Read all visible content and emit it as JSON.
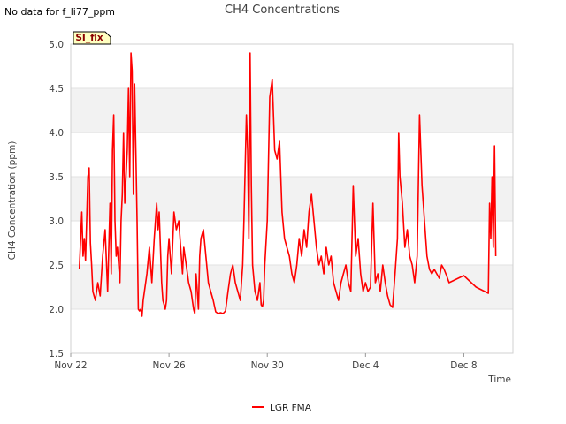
{
  "note": "No data for f_li77_ppm",
  "badge": "SI_flx",
  "chart_data": {
    "type": "line",
    "title": "CH4 Concentrations",
    "xlabel": "Time",
    "ylabel": "CH4 Concentration (ppm)",
    "ylim": [
      1.5,
      5.0
    ],
    "xlim_days": [
      0,
      18
    ],
    "yticks": [
      1.5,
      2.0,
      2.5,
      3.0,
      3.5,
      4.0,
      4.5,
      5.0
    ],
    "ytick_labels": [
      "1.5",
      "2.0",
      "2.5",
      "3.0",
      "3.5",
      "4.0",
      "4.5",
      "5.0"
    ],
    "xticks_days": [
      0,
      4,
      8,
      12,
      16
    ],
    "xtick_labels": [
      "Nov 22",
      "Nov 26",
      "Nov 30",
      "Dec 4",
      "Dec 8"
    ],
    "series": [
      {
        "name": "LGR FMA",
        "color": "#ff0000",
        "x_days": [
          0.35,
          0.45,
          0.5,
          0.55,
          0.6,
          0.7,
          0.75,
          0.8,
          0.85,
          0.9,
          1.0,
          1.1,
          1.2,
          1.3,
          1.4,
          1.5,
          1.6,
          1.65,
          1.7,
          1.75,
          1.8,
          1.85,
          1.9,
          1.95,
          2.0,
          2.05,
          2.1,
          2.15,
          2.2,
          2.3,
          2.35,
          2.4,
          2.45,
          2.5,
          2.55,
          2.6,
          2.65,
          2.7,
          2.75,
          2.8,
          2.85,
          2.9,
          2.95,
          3.0,
          3.1,
          3.2,
          3.3,
          3.4,
          3.5,
          3.55,
          3.6,
          3.65,
          3.7,
          3.75,
          3.8,
          3.85,
          3.9,
          3.95,
          4.0,
          4.1,
          4.2,
          4.3,
          4.4,
          4.5,
          4.55,
          4.6,
          4.7,
          4.8,
          4.9,
          5.0,
          5.05,
          5.1,
          5.15,
          5.2,
          5.25,
          5.3,
          5.4,
          5.5,
          5.6,
          5.7,
          5.8,
          5.9,
          6.0,
          6.1,
          6.2,
          6.3,
          6.4,
          6.5,
          6.6,
          6.7,
          6.8,
          6.9,
          7.0,
          7.05,
          7.1,
          7.15,
          7.2,
          7.25,
          7.3,
          7.35,
          7.4,
          7.5,
          7.6,
          7.7,
          7.75,
          7.8,
          7.85,
          7.9,
          8.0,
          8.1,
          8.2,
          8.3,
          8.4,
          8.5,
          8.6,
          8.7,
          8.8,
          8.9,
          9.0,
          9.1,
          9.2,
          9.3,
          9.4,
          9.5,
          9.6,
          9.7,
          9.8,
          9.9,
          10.0,
          10.1,
          10.2,
          10.3,
          10.4,
          10.5,
          10.6,
          10.7,
          10.8,
          10.9,
          11.0,
          11.1,
          11.2,
          11.3,
          11.4,
          11.5,
          11.6,
          11.7,
          11.8,
          11.9,
          12.0,
          12.1,
          12.2,
          12.3,
          12.4,
          12.5,
          12.6,
          12.7,
          12.8,
          12.9,
          13.0,
          13.1,
          13.2,
          13.3,
          13.35,
          13.4,
          13.5,
          13.6,
          13.7,
          13.8,
          13.9,
          14.0,
          14.1,
          14.2,
          14.3,
          14.4,
          14.5,
          14.6,
          14.7,
          14.8,
          14.9,
          15.0,
          15.1,
          15.2,
          15.3,
          15.4,
          16.0,
          16.5,
          17.0,
          17.05,
          17.1,
          17.15,
          17.2,
          17.25,
          17.3
        ],
        "values": [
          2.45,
          3.1,
          2.6,
          2.8,
          2.55,
          3.5,
          3.6,
          2.75,
          2.5,
          2.2,
          2.1,
          2.3,
          2.15,
          2.6,
          2.9,
          2.2,
          3.2,
          2.4,
          3.8,
          4.2,
          3.0,
          2.6,
          2.7,
          2.5,
          2.3,
          3.0,
          3.3,
          4.0,
          3.2,
          3.8,
          4.5,
          3.5,
          4.9,
          4.7,
          3.3,
          4.55,
          3.8,
          3.0,
          2.0,
          1.98,
          2.0,
          1.92,
          2.1,
          2.2,
          2.4,
          2.7,
          2.3,
          2.8,
          3.2,
          2.9,
          3.1,
          2.7,
          2.3,
          2.1,
          2.05,
          2.0,
          2.1,
          2.6,
          2.8,
          2.4,
          3.1,
          2.9,
          3.0,
          2.6,
          2.4,
          2.7,
          2.5,
          2.3,
          2.2,
          2.0,
          1.95,
          2.4,
          2.2,
          2.0,
          2.6,
          2.8,
          2.9,
          2.6,
          2.3,
          2.2,
          2.1,
          1.97,
          1.95,
          1.96,
          1.95,
          1.98,
          2.2,
          2.4,
          2.5,
          2.3,
          2.2,
          2.1,
          2.5,
          3.0,
          3.6,
          4.2,
          3.8,
          2.8,
          4.9,
          3.4,
          2.5,
          2.2,
          2.1,
          2.3,
          2.05,
          2.03,
          2.1,
          2.5,
          3.0,
          4.4,
          4.6,
          3.8,
          3.7,
          3.9,
          3.1,
          2.8,
          2.7,
          2.6,
          2.4,
          2.3,
          2.5,
          2.8,
          2.6,
          2.9,
          2.7,
          3.1,
          3.3,
          3.0,
          2.7,
          2.5,
          2.6,
          2.4,
          2.7,
          2.5,
          2.6,
          2.3,
          2.2,
          2.1,
          2.3,
          2.4,
          2.5,
          2.3,
          2.2,
          3.4,
          2.6,
          2.8,
          2.4,
          2.2,
          2.3,
          2.2,
          2.25,
          3.2,
          2.3,
          2.4,
          2.2,
          2.5,
          2.3,
          2.15,
          2.05,
          2.02,
          2.4,
          2.8,
          4.0,
          3.5,
          3.2,
          2.7,
          2.9,
          2.6,
          2.5,
          2.3,
          2.6,
          4.2,
          3.4,
          3.0,
          2.6,
          2.45,
          2.4,
          2.45,
          2.4,
          2.35,
          2.5,
          2.45,
          2.38,
          2.3,
          2.38,
          2.25,
          2.18,
          3.2,
          2.8,
          3.5,
          2.7,
          3.85,
          2.6
        ]
      }
    ],
    "legend": {
      "entries": [
        "LGR FMA"
      ],
      "placement": "bottom-center"
    },
    "grid": true
  }
}
